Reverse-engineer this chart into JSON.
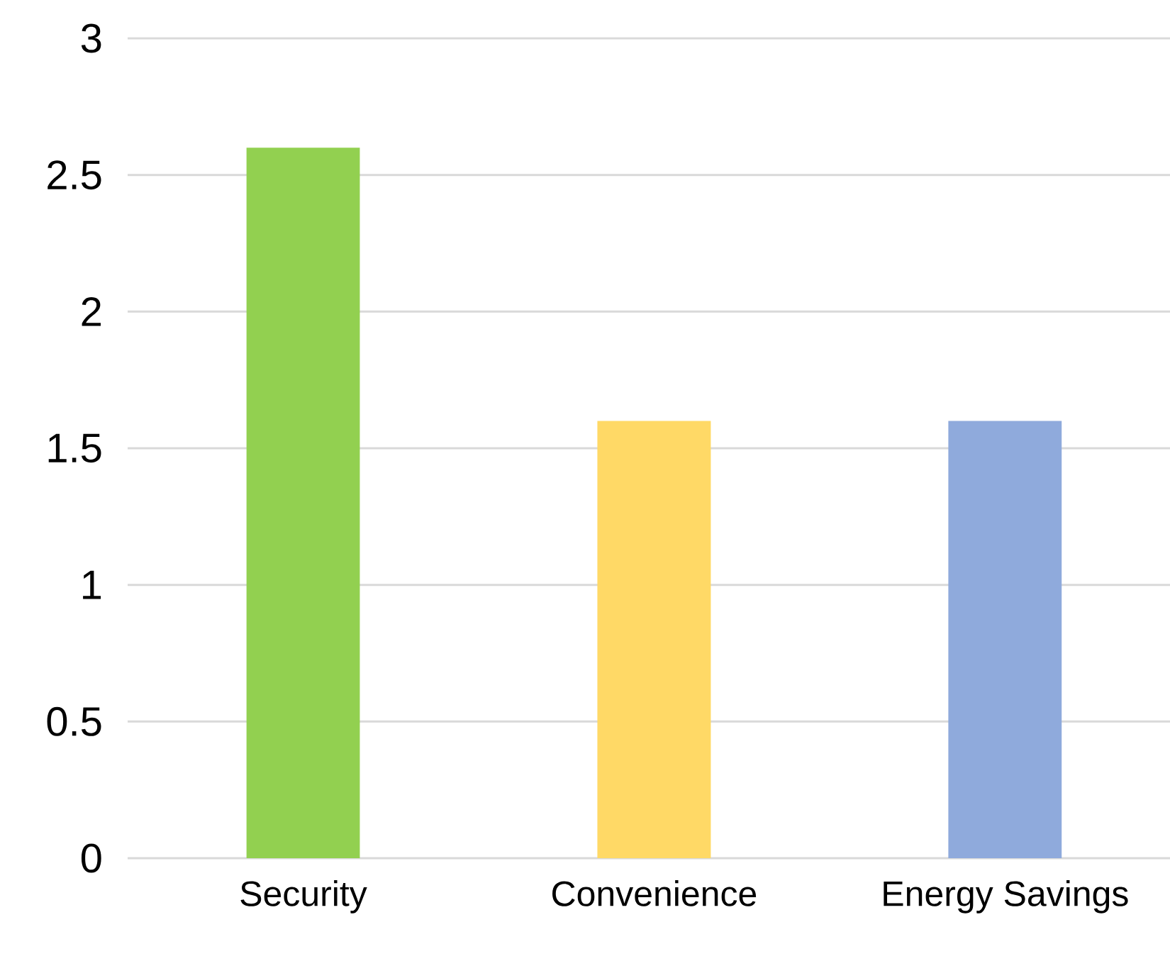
{
  "chart_data": {
    "type": "bar",
    "categories": [
      "Security",
      "Convenience",
      "Energy Savings"
    ],
    "values": [
      2.6,
      1.6,
      1.6
    ],
    "colors": [
      "#92d050",
      "#ffd966",
      "#8faadc"
    ],
    "ylim": [
      0,
      3
    ],
    "yticks": [
      0,
      0.5,
      1,
      1.5,
      2,
      2.5,
      3
    ],
    "grid": "y"
  }
}
